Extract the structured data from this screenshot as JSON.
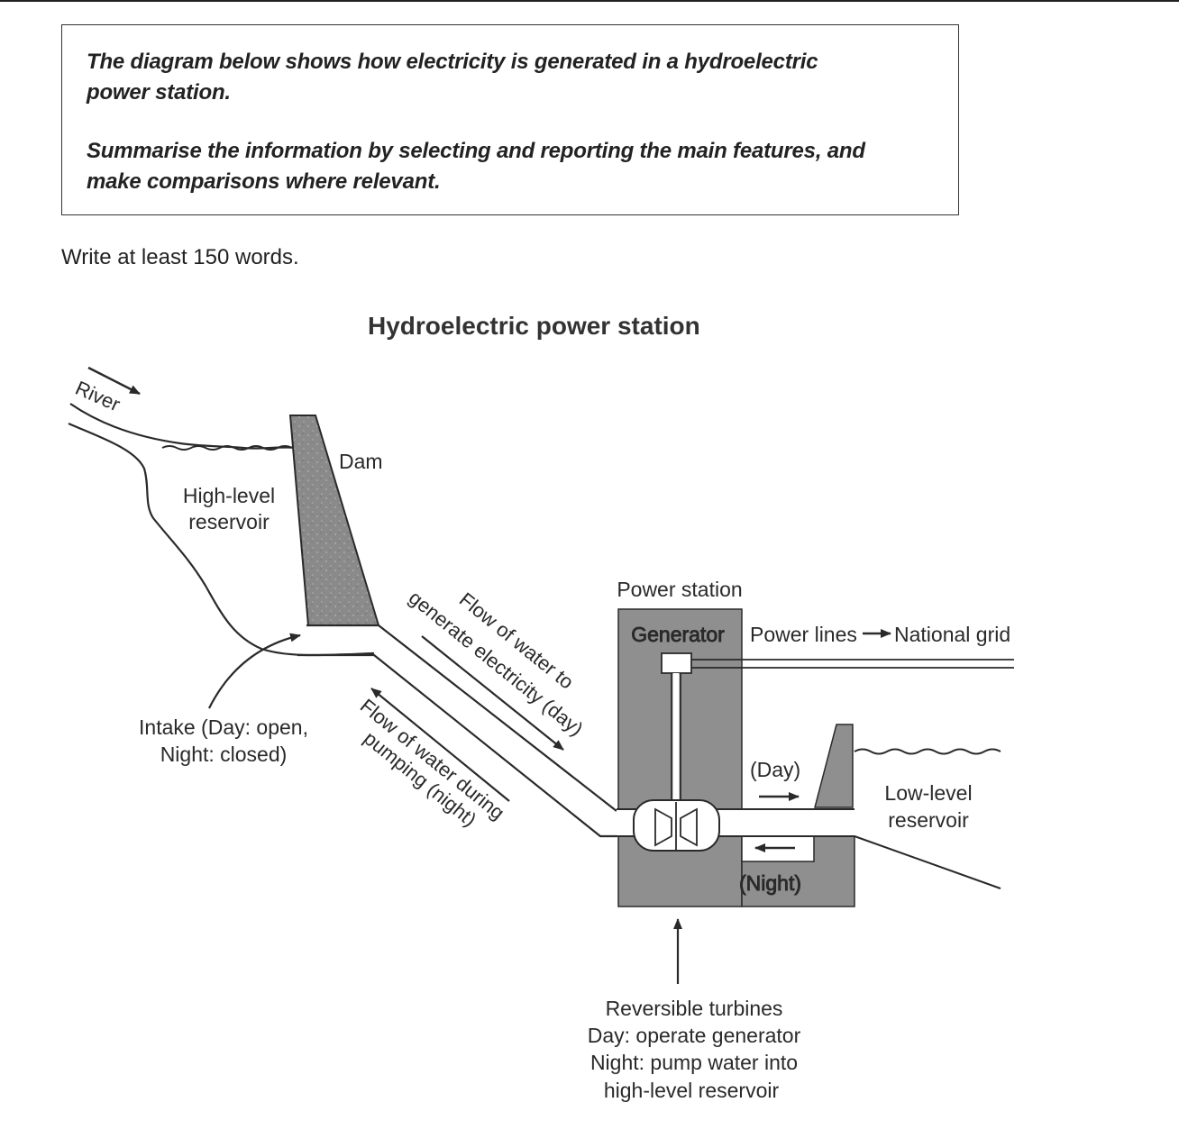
{
  "task": {
    "line1": "The diagram below shows how electricity is generated in a hydroelectric",
    "line2": "power station.",
    "line3": "Summarise the information by selecting and reporting the main features, and",
    "line4": "make comparisons where relevant."
  },
  "instruction": "Write at least 150 words.",
  "diagram": {
    "title": "Hydroelectric power station",
    "labels": {
      "river": "River",
      "dam": "Dam",
      "high_reservoir_1": "High-level",
      "high_reservoir_2": "reservoir",
      "intake_1": "Intake (Day: open,",
      "intake_2": "Night: closed)",
      "flow_day_1": "Flow of water to",
      "flow_day_2": "generate electricity (day)",
      "flow_night_1": "Flow of water during",
      "flow_night_2": "pumping (night)",
      "power_station": "Power station",
      "generator": "Generator",
      "power_lines": "Power lines",
      "national_grid": "National grid",
      "day": "(Day)",
      "night": "(Night)",
      "low_reservoir_1": "Low-level",
      "low_reservoir_2": "reservoir",
      "turbines_1": "Reversible turbines",
      "turbines_2": "Day: operate generator",
      "turbines_3": "Night: pump water into",
      "turbines_4": "high-level reservoir"
    }
  }
}
